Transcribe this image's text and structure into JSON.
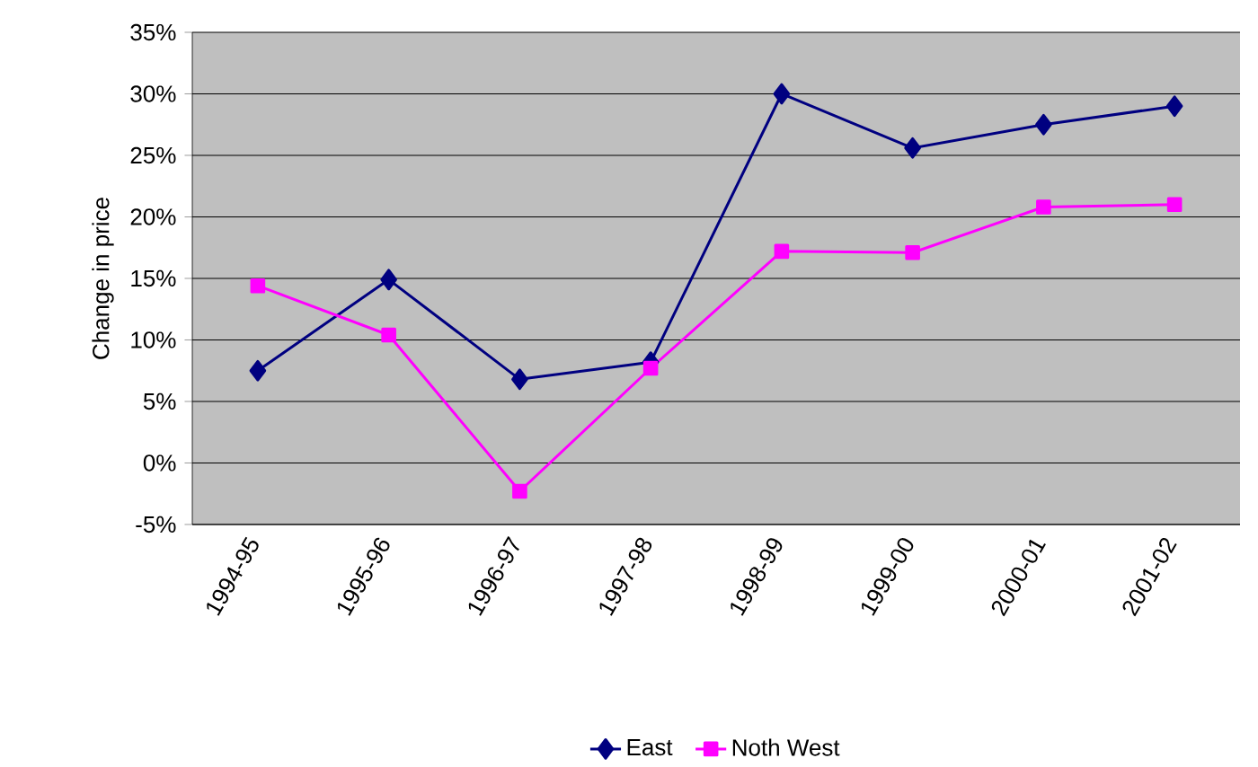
{
  "chart_data": {
    "type": "line",
    "ylabel": "Change in price",
    "categories": [
      "1994-95",
      "1995-96",
      "1996-97",
      "1997-98",
      "1998-99",
      "1999-00",
      "2000-01",
      "2001-02"
    ],
    "series": [
      {
        "name": "East",
        "color": "#000080",
        "marker": "diamond",
        "values": [
          7.5,
          14.9,
          6.8,
          8.2,
          30.0,
          25.6,
          27.5,
          29.0
        ]
      },
      {
        "name": "Noth West",
        "color": "#ff00ff",
        "marker": "square",
        "values": [
          14.4,
          10.4,
          -2.3,
          7.7,
          17.2,
          17.1,
          20.8,
          21.0
        ]
      }
    ],
    "ylim": [
      -5,
      35
    ],
    "yticks": [
      {
        "value": -5,
        "label": "-5%"
      },
      {
        "value": 0,
        "label": "0%"
      },
      {
        "value": 5,
        "label": "5%"
      },
      {
        "value": 10,
        "label": "10%"
      },
      {
        "value": 15,
        "label": "15%"
      },
      {
        "value": 20,
        "label": "20%"
      },
      {
        "value": 25,
        "label": "25%"
      },
      {
        "value": 30,
        "label": "30%"
      },
      {
        "value": 35,
        "label": "35%"
      }
    ],
    "grid": "y",
    "legend": "bottom",
    "line_style": "solid"
  }
}
